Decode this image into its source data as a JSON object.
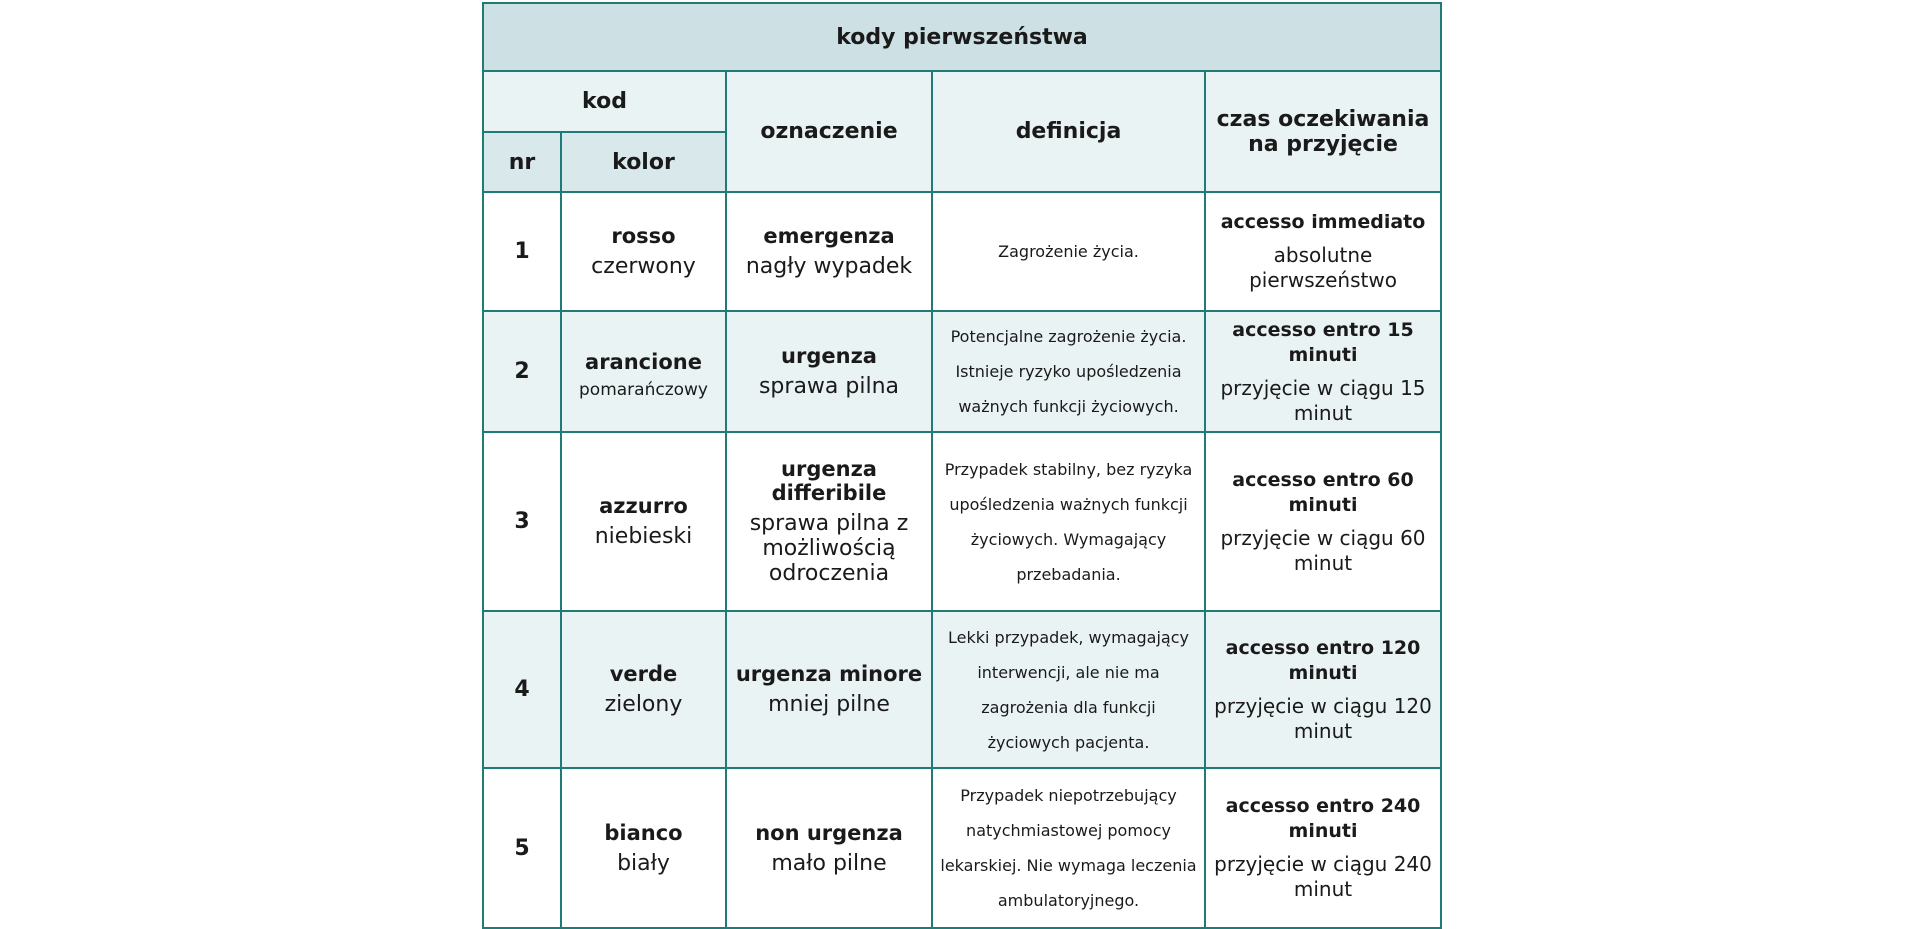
{
  "title": "kody pierwszeństwa",
  "headers": {
    "kod": "kod",
    "nr": "nr",
    "kolor": "kolor",
    "oznaczenie": "oznaczenie",
    "definicja": "definicja",
    "czas": "czas oczekiwania na przyjęcie"
  },
  "rows": [
    {
      "nr": "1",
      "kolor_it": "rosso",
      "kolor_pl": "czerwony",
      "ozn_it": "emergenza",
      "ozn_pl": "nagły wypadek",
      "definicja": "Zagrożenie życia.",
      "czas_it": "accesso immediato",
      "czas_pl": "absolutne pierwszeństwo"
    },
    {
      "nr": "2",
      "kolor_it": "arancione",
      "kolor_pl": "pomarańczowy",
      "ozn_it": "urgenza",
      "ozn_pl": "sprawa pilna",
      "definicja": "Potencjalne zagrożenie życia. Istnieje ryzyko upośledzenia ważnych funkcji życiowych.",
      "czas_it": "accesso entro 15 minuti",
      "czas_pl": "przyjęcie w ciągu 15 minut"
    },
    {
      "nr": "3",
      "kolor_it": "azzurro",
      "kolor_pl": "niebieski",
      "ozn_it": "urgenza differibile",
      "ozn_pl": "sprawa pilna z możliwością odroczenia",
      "definicja": "Przypadek stabilny, bez ryzyka upośledzenia ważnych funkcji życiowych. Wymagający przebadania.",
      "czas_it": "accesso entro 60 minuti",
      "czas_pl": "przyjęcie w ciągu 60 minut"
    },
    {
      "nr": "4",
      "kolor_it": "verde",
      "kolor_pl": "zielony",
      "ozn_it": "urgenza minore",
      "ozn_pl": "mniej pilne",
      "definicja": "Lekki przypadek, wymagający interwencji, ale nie ma zagrożenia dla funkcji życiowych pacjenta.",
      "czas_it": "accesso entro 120 minuti",
      "czas_pl": "przyjęcie w ciągu 120 minut"
    },
    {
      "nr": "5",
      "kolor_it": "bianco",
      "kolor_pl": "biały",
      "ozn_it": "non urgenza",
      "ozn_pl": "mało pilne",
      "definicja": "Przypadek niepotrzebujący natychmiastowej pomocy lekarskiej. Nie wymaga leczenia ambulatoryjnego.",
      "czas_it": "accesso entro 240 minuti",
      "czas_pl": "przyjęcie w ciągu 240 minut"
    }
  ]
}
